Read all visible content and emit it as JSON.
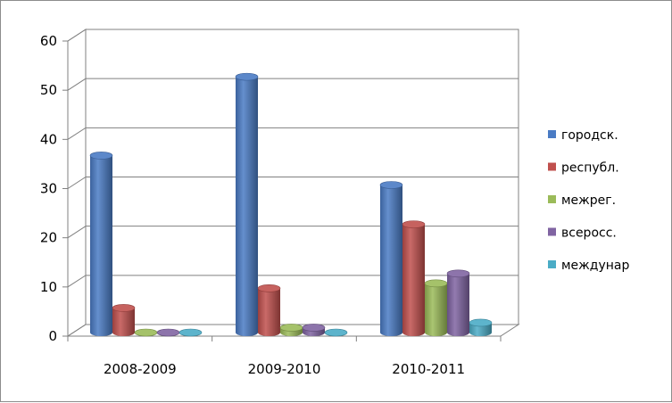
{
  "chart_data": {
    "type": "bar",
    "style": "3d-cylinder",
    "categories": [
      "2008-2009",
      "2009-2010",
      "2010-2011"
    ],
    "series": [
      {
        "name": "городск.",
        "color": "#4a7bc4",
        "values": [
          36,
          52,
          30
        ]
      },
      {
        "name": "республ.",
        "color": "#c0504d",
        "values": [
          5,
          9,
          22
        ]
      },
      {
        "name": "межрег.",
        "color": "#9bbb59",
        "values": [
          0,
          1,
          10
        ]
      },
      {
        "name": "всеросс.",
        "color": "#8064a2",
        "values": [
          0,
          1,
          12
        ]
      },
      {
        "name": "междунар",
        "color": "#4bacc6",
        "values": [
          0,
          0,
          2
        ]
      }
    ],
    "y_ticks": [
      "0",
      "10",
      "20",
      "30",
      "40",
      "50",
      "60"
    ],
    "ylim": [
      0,
      60
    ],
    "grid": true,
    "legend_position": "right"
  }
}
